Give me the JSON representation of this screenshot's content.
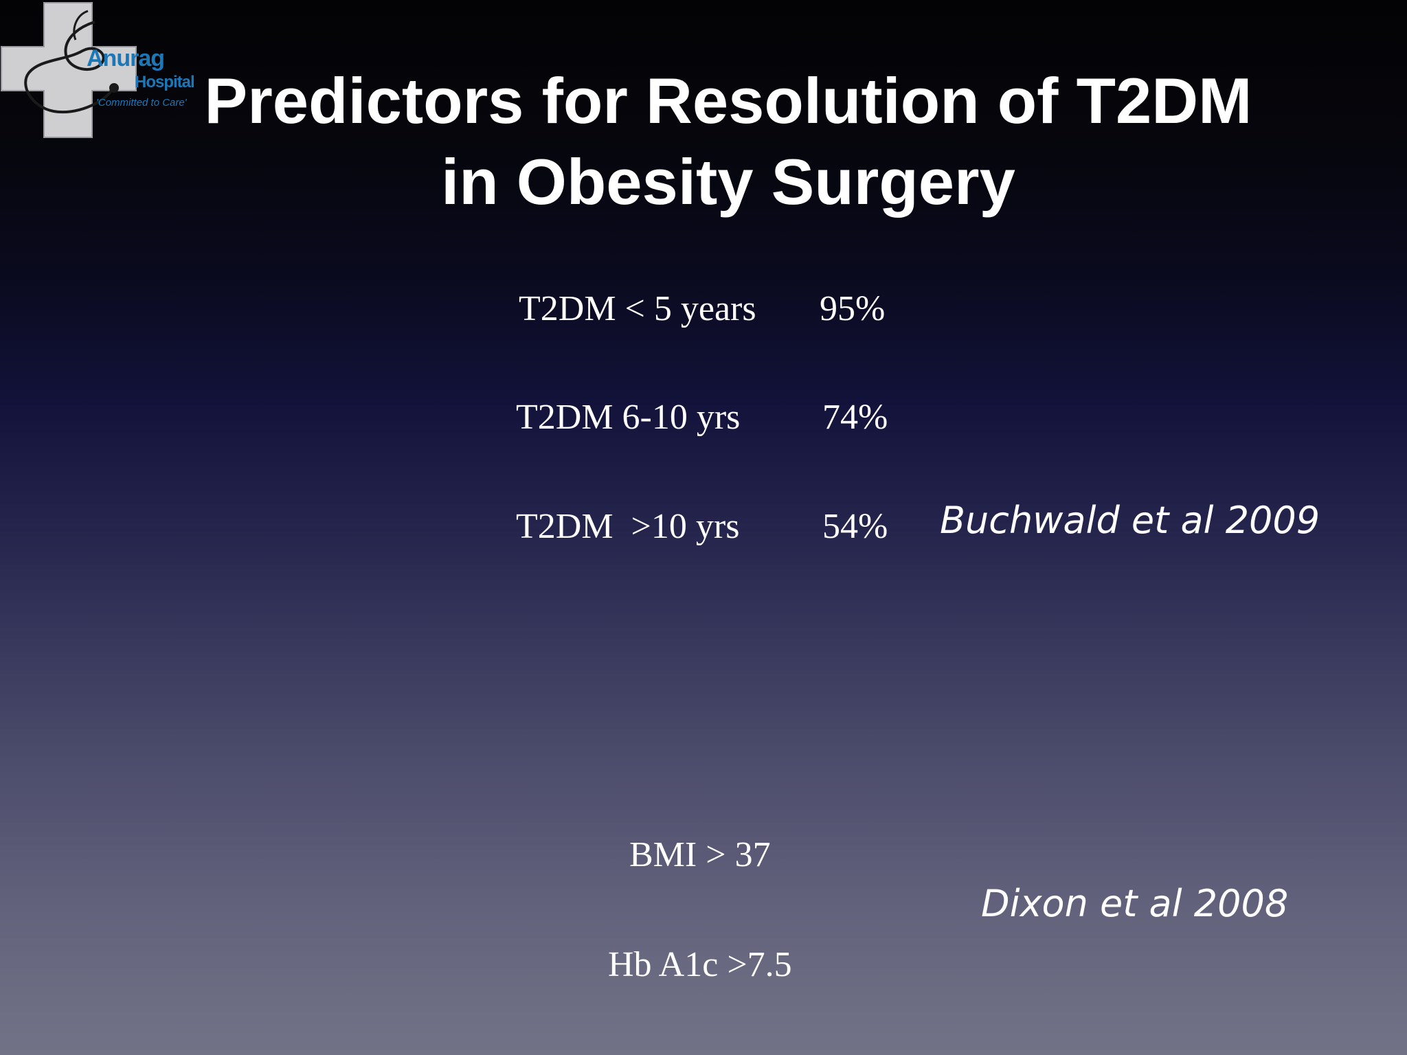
{
  "logo": {
    "icon": "cross-stethoscope-icon",
    "name": "Anurag",
    "sub": "Hospital",
    "tagline": "'Committed to Care'"
  },
  "title": {
    "line1": "Predictors  for Resolution of T2DM",
    "line2": "in Obesity Surgery"
  },
  "duration_rows": [
    {
      "label": "T2DM < 5 years",
      "value": "95%"
    },
    {
      "label": "T2DM 6-10 yrs",
      "value": "74%"
    },
    {
      "label": "T2DM  >10 yrs",
      "value": "54%"
    }
  ],
  "citation1": "Buchwald et al 2009",
  "predictors": [
    {
      "label": "BMI > 37"
    },
    {
      "label": "Hb A1c >7.5"
    }
  ],
  "citation2": "Dixon et al 2008",
  "colors": {
    "text": "#ffffff",
    "logo_blue": "#1a78b8",
    "logo_cross": "#cfcfd2"
  }
}
